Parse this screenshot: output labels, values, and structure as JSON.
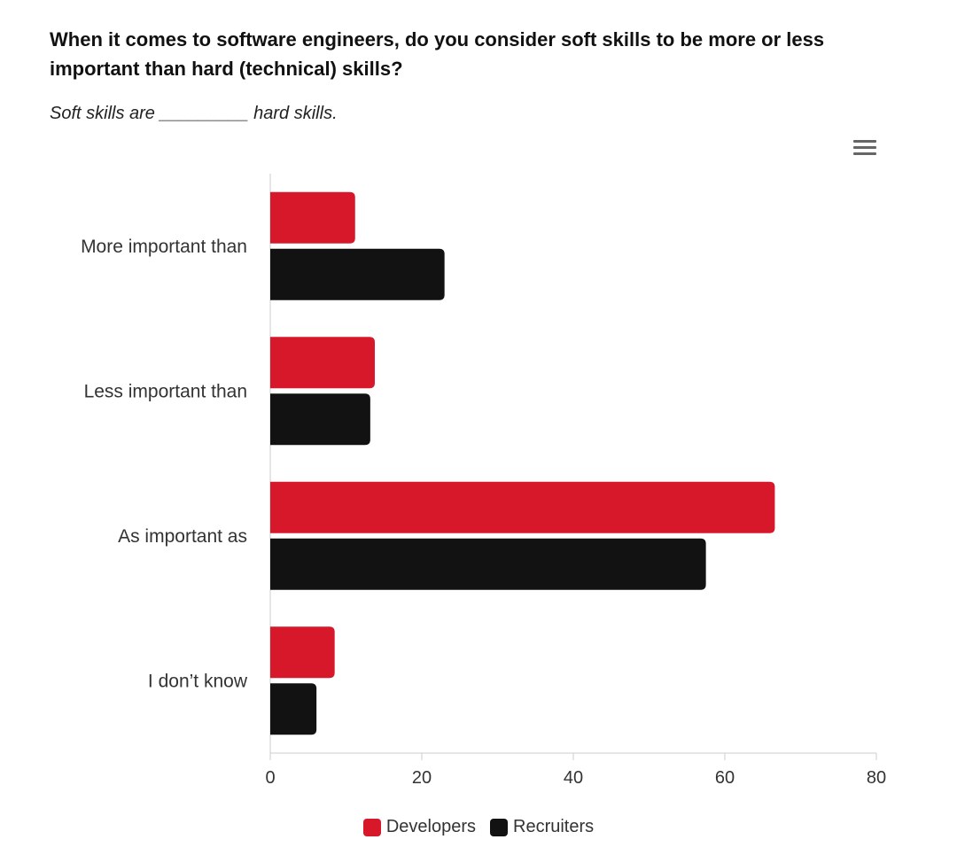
{
  "header": {
    "title": "When it comes to software engineers, do you consider soft skills to be more or less important than hard (technical) skills?",
    "subtitle": "Soft skills are _________ hard skills."
  },
  "menu": {
    "icon": "hamburger-menu-icon"
  },
  "colors": {
    "developers": "#d7182a",
    "recruiters": "#121212",
    "axis": "#cccccc",
    "text": "#333333"
  },
  "chart_data": {
    "type": "bar",
    "orientation": "horizontal",
    "categories": [
      "More important than",
      "Less important than",
      "As important as",
      "I don’t know"
    ],
    "series": [
      {
        "name": "Developers",
        "values": [
          11.2,
          13.8,
          66.6,
          8.5
        ]
      },
      {
        "name": "Recruiters",
        "values": [
          23.0,
          13.2,
          57.5,
          6.1
        ]
      }
    ],
    "title": "When it comes to software engineers, do you consider soft skills to be more or less important than hard (technical) skills?",
    "subtitle": "Soft skills are _________ hard skills.",
    "xlim": [
      0,
      80
    ],
    "xticks": [
      0,
      20,
      40,
      60,
      80
    ],
    "xlabel": "",
    "ylabel": "",
    "grid": false,
    "legend": "bottom-center"
  }
}
